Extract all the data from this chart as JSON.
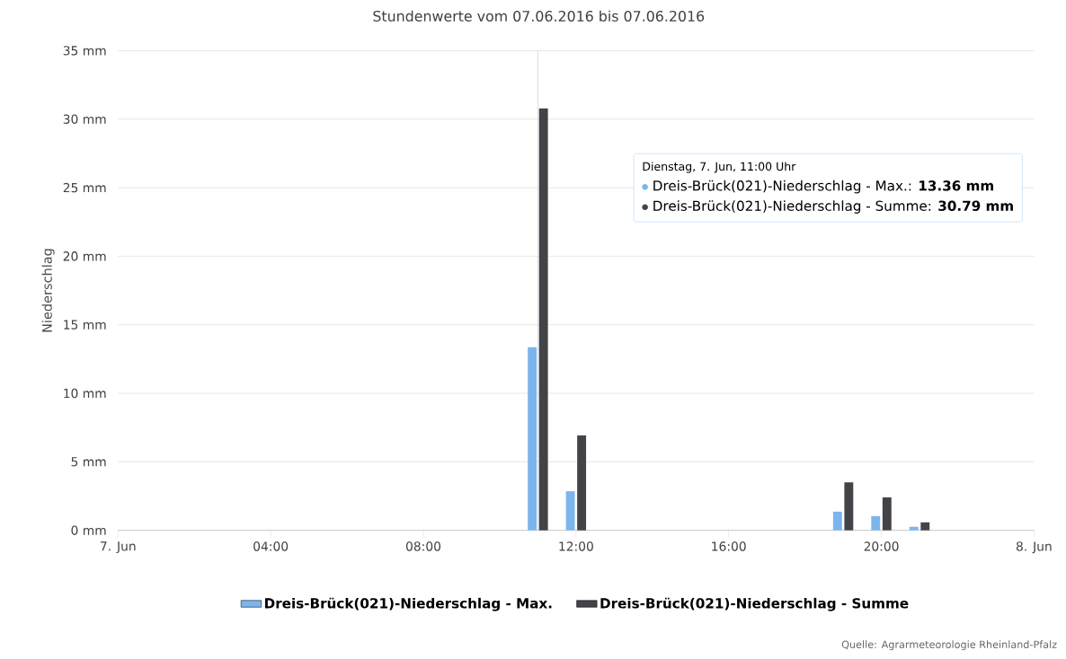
{
  "chart_data": {
    "type": "bar",
    "title": "Stundenwerte vom 07.06.2016 bis 07.06.2016",
    "ylabel": "Niederschlag",
    "x": [
      11,
      12,
      19,
      20,
      21
    ],
    "series": [
      {
        "name": "Dreis-Brück(021)-Niederschlag - Max.",
        "color": "#7cb5ec",
        "values": [
          13.36,
          2.85,
          1.36,
          1.04,
          0.26
        ]
      },
      {
        "name": "Dreis-Brück(021)-Niederschlag - Summe",
        "color": "#434348",
        "values": [
          30.79,
          6.93,
          3.5,
          2.4,
          0.58
        ]
      }
    ],
    "xlim": [
      0,
      24
    ],
    "xticks": [
      {
        "value": 0,
        "label": "7. Jun"
      },
      {
        "value": 4,
        "label": "04:00"
      },
      {
        "value": 8,
        "label": "08:00"
      },
      {
        "value": 12,
        "label": "12:00"
      },
      {
        "value": 16,
        "label": "16:00"
      },
      {
        "value": 20,
        "label": "20:00"
      },
      {
        "value": 24,
        "label": "8. Jun"
      }
    ],
    "ylim": [
      0,
      35
    ],
    "yticks": [
      {
        "value": 0,
        "label": "0 mm"
      },
      {
        "value": 5,
        "label": "5 mm"
      },
      {
        "value": 10,
        "label": "10 mm"
      },
      {
        "value": 15,
        "label": "15 mm"
      },
      {
        "value": 20,
        "label": "20 mm"
      },
      {
        "value": 25,
        "label": "25 mm"
      },
      {
        "value": 30,
        "label": "30 mm"
      },
      {
        "value": 35,
        "label": "35 mm"
      }
    ],
    "grid": "y",
    "legend": "bottom",
    "ref_lines": [
      {
        "axis": "x",
        "value": 11,
        "color": "#c0c0c0"
      }
    ],
    "annotations": [
      "Dienstag, 7. Jun, 11:00 Uhr",
      "Dreis-Brück(021)-Niederschlag - Max.: **13.36 mm**",
      "Dreis-Brück(021)-Niederschlag - Summe: **30.79 mm**",
      "Quelle: Agrarmeteorologie Rheinland-Pfalz"
    ]
  }
}
